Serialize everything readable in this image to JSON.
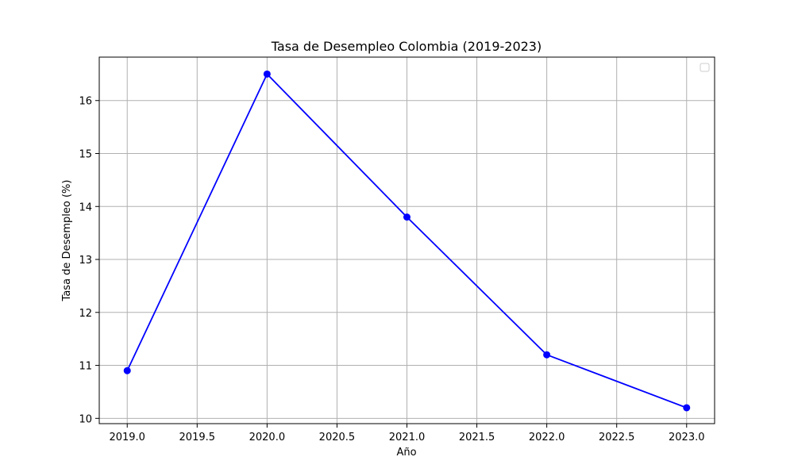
{
  "chart_data": {
    "type": "line",
    "title": "Tasa de Desempleo Colombia (2019-2023)",
    "xlabel": "Año",
    "ylabel": "Tasa de Desempleo (%)",
    "x": [
      2019,
      2020,
      2021,
      2022,
      2023
    ],
    "series": [
      {
        "values": [
          10.9,
          16.5,
          13.8,
          11.2,
          10.2
        ],
        "color": "#0000ff",
        "marker": "circle"
      }
    ],
    "xlim": [
      2018.8,
      2023.2
    ],
    "ylim": [
      9.9,
      16.82
    ],
    "xticks": [
      "2019.0",
      "2019.5",
      "2020.0",
      "2020.5",
      "2021.0",
      "2021.5",
      "2022.0",
      "2022.5",
      "2023.0"
    ],
    "yticks": [
      "10",
      "11",
      "12",
      "13",
      "14",
      "15",
      "16"
    ],
    "grid": true,
    "legend": {
      "placement": "top-right",
      "entries": []
    },
    "colors": {
      "line": "#0000ff",
      "grid": "#b0b0b0",
      "axes": "#000000"
    }
  }
}
